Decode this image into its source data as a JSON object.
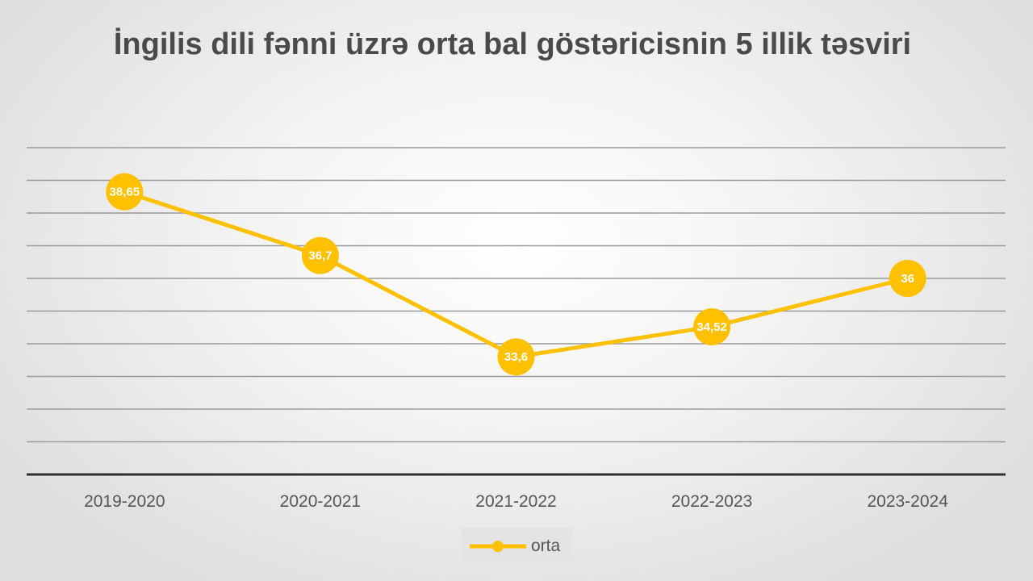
{
  "chart_data": {
    "type": "line",
    "title": "İngilis dili fənni üzrə orta bal göstəricisnin 5 illik təsviri",
    "categories": [
      "2019-2020",
      "2020-2021",
      "2021-2022",
      "2022-2023",
      "2023-2024"
    ],
    "series": [
      {
        "name": "orta",
        "values": [
          38.65,
          36.7,
          33.6,
          34.52,
          36
        ],
        "labels": [
          "38,65",
          "36,7",
          "33,6",
          "34,52",
          "36"
        ],
        "color": "#FFC000"
      }
    ],
    "ylim": [
      30,
      40
    ],
    "ystep": 1,
    "grid": true,
    "legend": "bottom"
  }
}
